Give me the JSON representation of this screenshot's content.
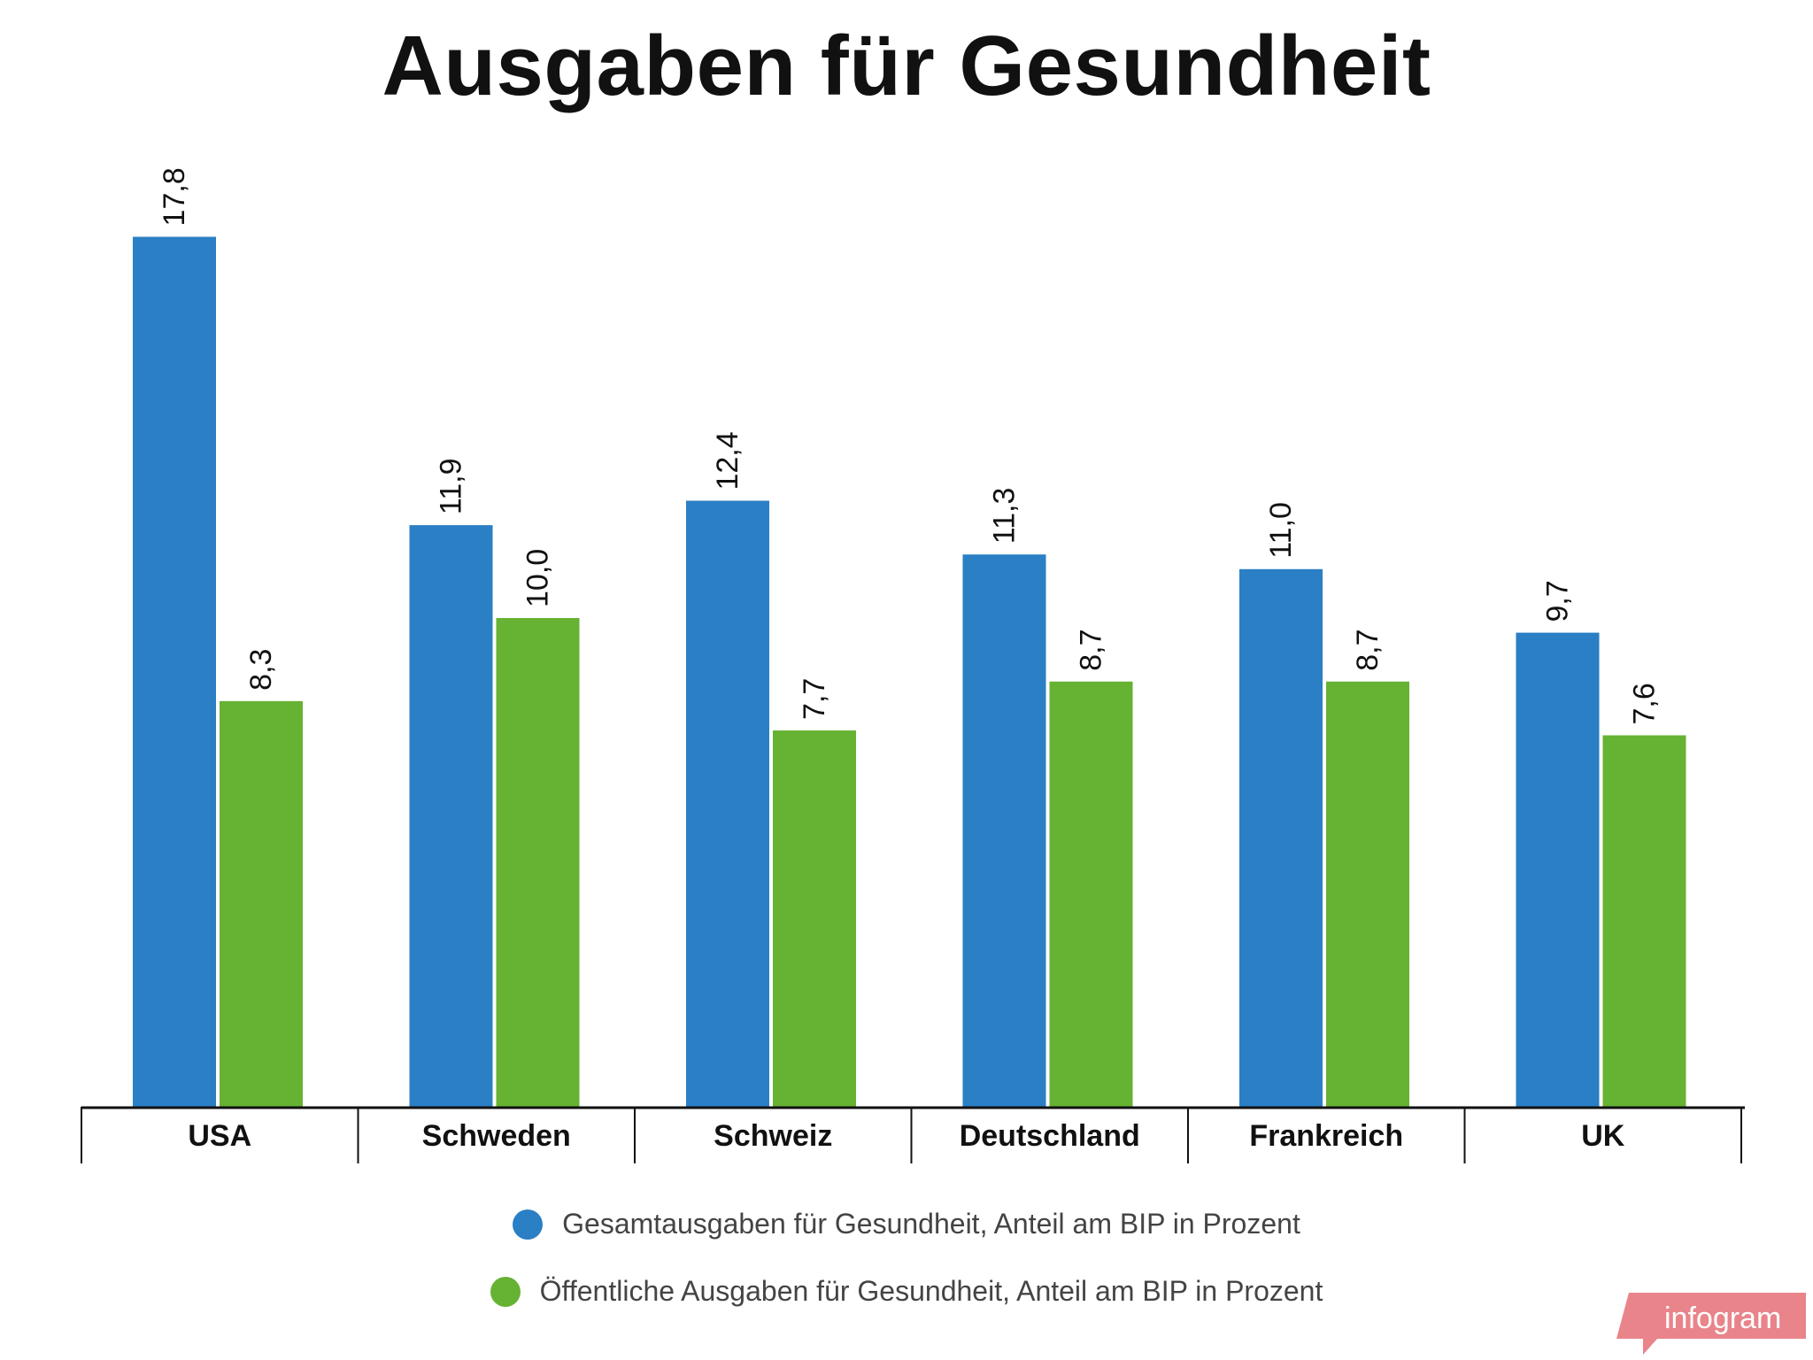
{
  "colors": {
    "total": "#2a7fc5",
    "public": "#66b233",
    "axis": "#111111",
    "badge": "#e8848a"
  },
  "chart_data": {
    "type": "bar",
    "title": "Ausgaben für Gesundheit",
    "categories": [
      "USA",
      "Schweden",
      "Schweiz",
      "Deutschland",
      "Frankreich",
      "UK"
    ],
    "series": [
      {
        "name": "Gesamtausgaben für Gesundheit, Anteil am BIP in Prozent",
        "values": [
          17.8,
          11.9,
          12.4,
          11.3,
          11.0,
          9.7
        ],
        "labels": [
          "17,8",
          "11,9",
          "12,4",
          "11,3",
          "11,0",
          "9,7"
        ]
      },
      {
        "name": "Öffentliche Ausgaben für Gesundheit, Anteil am BIP in Prozent",
        "values": [
          8.3,
          10.0,
          7.7,
          8.7,
          8.7,
          7.6
        ],
        "labels": [
          "8,3",
          "10,0",
          "7,7",
          "8,7",
          "8,7",
          "7,6"
        ]
      }
    ],
    "xlabel": "",
    "ylabel": "",
    "ylim": [
      0,
      17.8
    ],
    "grid": false,
    "legend": "bottom-center"
  },
  "branding": {
    "badge_text": "infogram"
  }
}
